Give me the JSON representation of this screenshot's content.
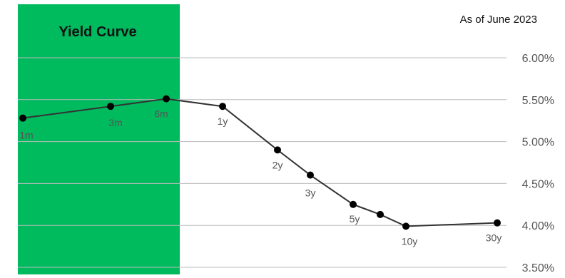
{
  "chart_data": {
    "type": "line",
    "title": "Yield Curve",
    "subtitle": "As of June 2023",
    "categories": [
      "1m",
      "3m",
      "6m",
      "1y",
      "2y",
      "3y",
      "5y",
      "7y",
      "10y",
      "30y"
    ],
    "point_labels": [
      "1m",
      "3m",
      "6m",
      "1y",
      "2y",
      "3y",
      "5y",
      "",
      "10y",
      "30y"
    ],
    "series": [
      {
        "values": [
          5.28,
          5.42,
          5.51,
          5.42,
          4.9,
          4.6,
          4.25,
          4.13,
          3.99,
          4.03
        ]
      }
    ],
    "ylim": [
      3.5,
      6.0
    ],
    "yticks": [
      "6.00%",
      "5.50%",
      "5.00%",
      "4.50%",
      "4.00%",
      "3.50%"
    ],
    "ytick_values": [
      6.0,
      5.5,
      5.0,
      4.5,
      4.0,
      3.5
    ],
    "highlight_range": [
      "1m",
      "6m"
    ],
    "xlabel": "",
    "ylabel": "",
    "grid": true,
    "colors": {
      "highlight": "#00BA5E",
      "line": "#333333",
      "marker": "#000000",
      "grid": "#bbbbbb"
    }
  }
}
